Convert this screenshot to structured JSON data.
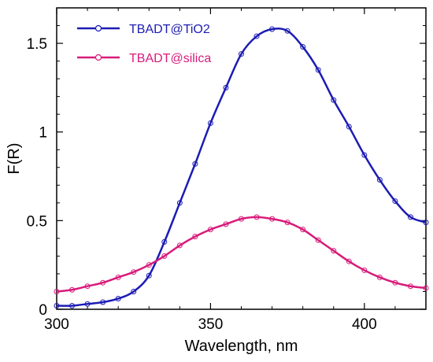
{
  "chart_data": {
    "type": "line",
    "title": "",
    "xlabel": "Wavelength, nm",
    "ylabel": "F(R)",
    "xlim": [
      300,
      420
    ],
    "ylim": [
      0,
      1.7
    ],
    "x_ticks": [
      300,
      350,
      400
    ],
    "y_ticks": [
      0,
      0.5,
      1,
      1.5
    ],
    "x_tick_labels": [
      "300",
      "350",
      "400"
    ],
    "y_tick_labels": [
      "0",
      "0.5",
      "1",
      "1.5"
    ],
    "grid": false,
    "legend_position": "top-left",
    "x": [
      300,
      305,
      310,
      315,
      320,
      325,
      330,
      335,
      340,
      345,
      350,
      355,
      360,
      365,
      370,
      375,
      380,
      385,
      390,
      395,
      400,
      405,
      410,
      415,
      420
    ],
    "series": [
      {
        "name": "TBADT@TiO2",
        "color": "#1c1cb4",
        "marker": "open-circle",
        "values": [
          0.02,
          0.02,
          0.03,
          0.04,
          0.06,
          0.1,
          0.19,
          0.38,
          0.6,
          0.82,
          1.05,
          1.25,
          1.44,
          1.54,
          1.58,
          1.57,
          1.48,
          1.35,
          1.18,
          1.03,
          0.87,
          0.73,
          0.61,
          0.52,
          0.49
        ]
      },
      {
        "name": "TBADT@silica",
        "color": "#d81b7a",
        "marker": "open-circle",
        "values": [
          0.1,
          0.11,
          0.13,
          0.15,
          0.18,
          0.21,
          0.25,
          0.3,
          0.36,
          0.41,
          0.45,
          0.48,
          0.51,
          0.52,
          0.51,
          0.49,
          0.45,
          0.39,
          0.33,
          0.27,
          0.22,
          0.18,
          0.15,
          0.13,
          0.12
        ]
      }
    ]
  }
}
